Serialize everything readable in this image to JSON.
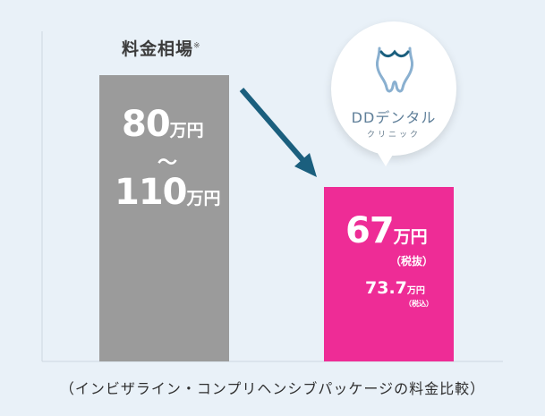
{
  "chart_data": {
    "type": "bar",
    "title": "料金相場",
    "title_note": "※",
    "categories": [
      "料金相場",
      "DDデンタルクリニック"
    ],
    "series": [
      {
        "values": [
          110,
          67
        ]
      }
    ],
    "bars": [
      {
        "name": "market",
        "range": [
          80,
          110
        ],
        "label_low": "80",
        "label_tilde": "〜",
        "label_high": "110",
        "unit": "万円",
        "color": "#9b9b9b"
      },
      {
        "name": "dd-dental",
        "value": 67,
        "label": "67",
        "unit": "万円",
        "tax_excluded": "（税抜）",
        "value_with_tax": "73.7",
        "unit_small": "万円",
        "tax_included": "（税込）",
        "color": "#ee2c96"
      }
    ],
    "footer": "（インビザライン・コンプリヘンシブパッケージの料金比較）",
    "ylim": [
      0,
      112
    ],
    "grid": false
  },
  "brand": {
    "name": "DDデンタル",
    "sub": "クリニック",
    "icon": "tooth-icon"
  },
  "colors": {
    "background": "#e9f1f8",
    "arrow": "#1b5f7e"
  }
}
